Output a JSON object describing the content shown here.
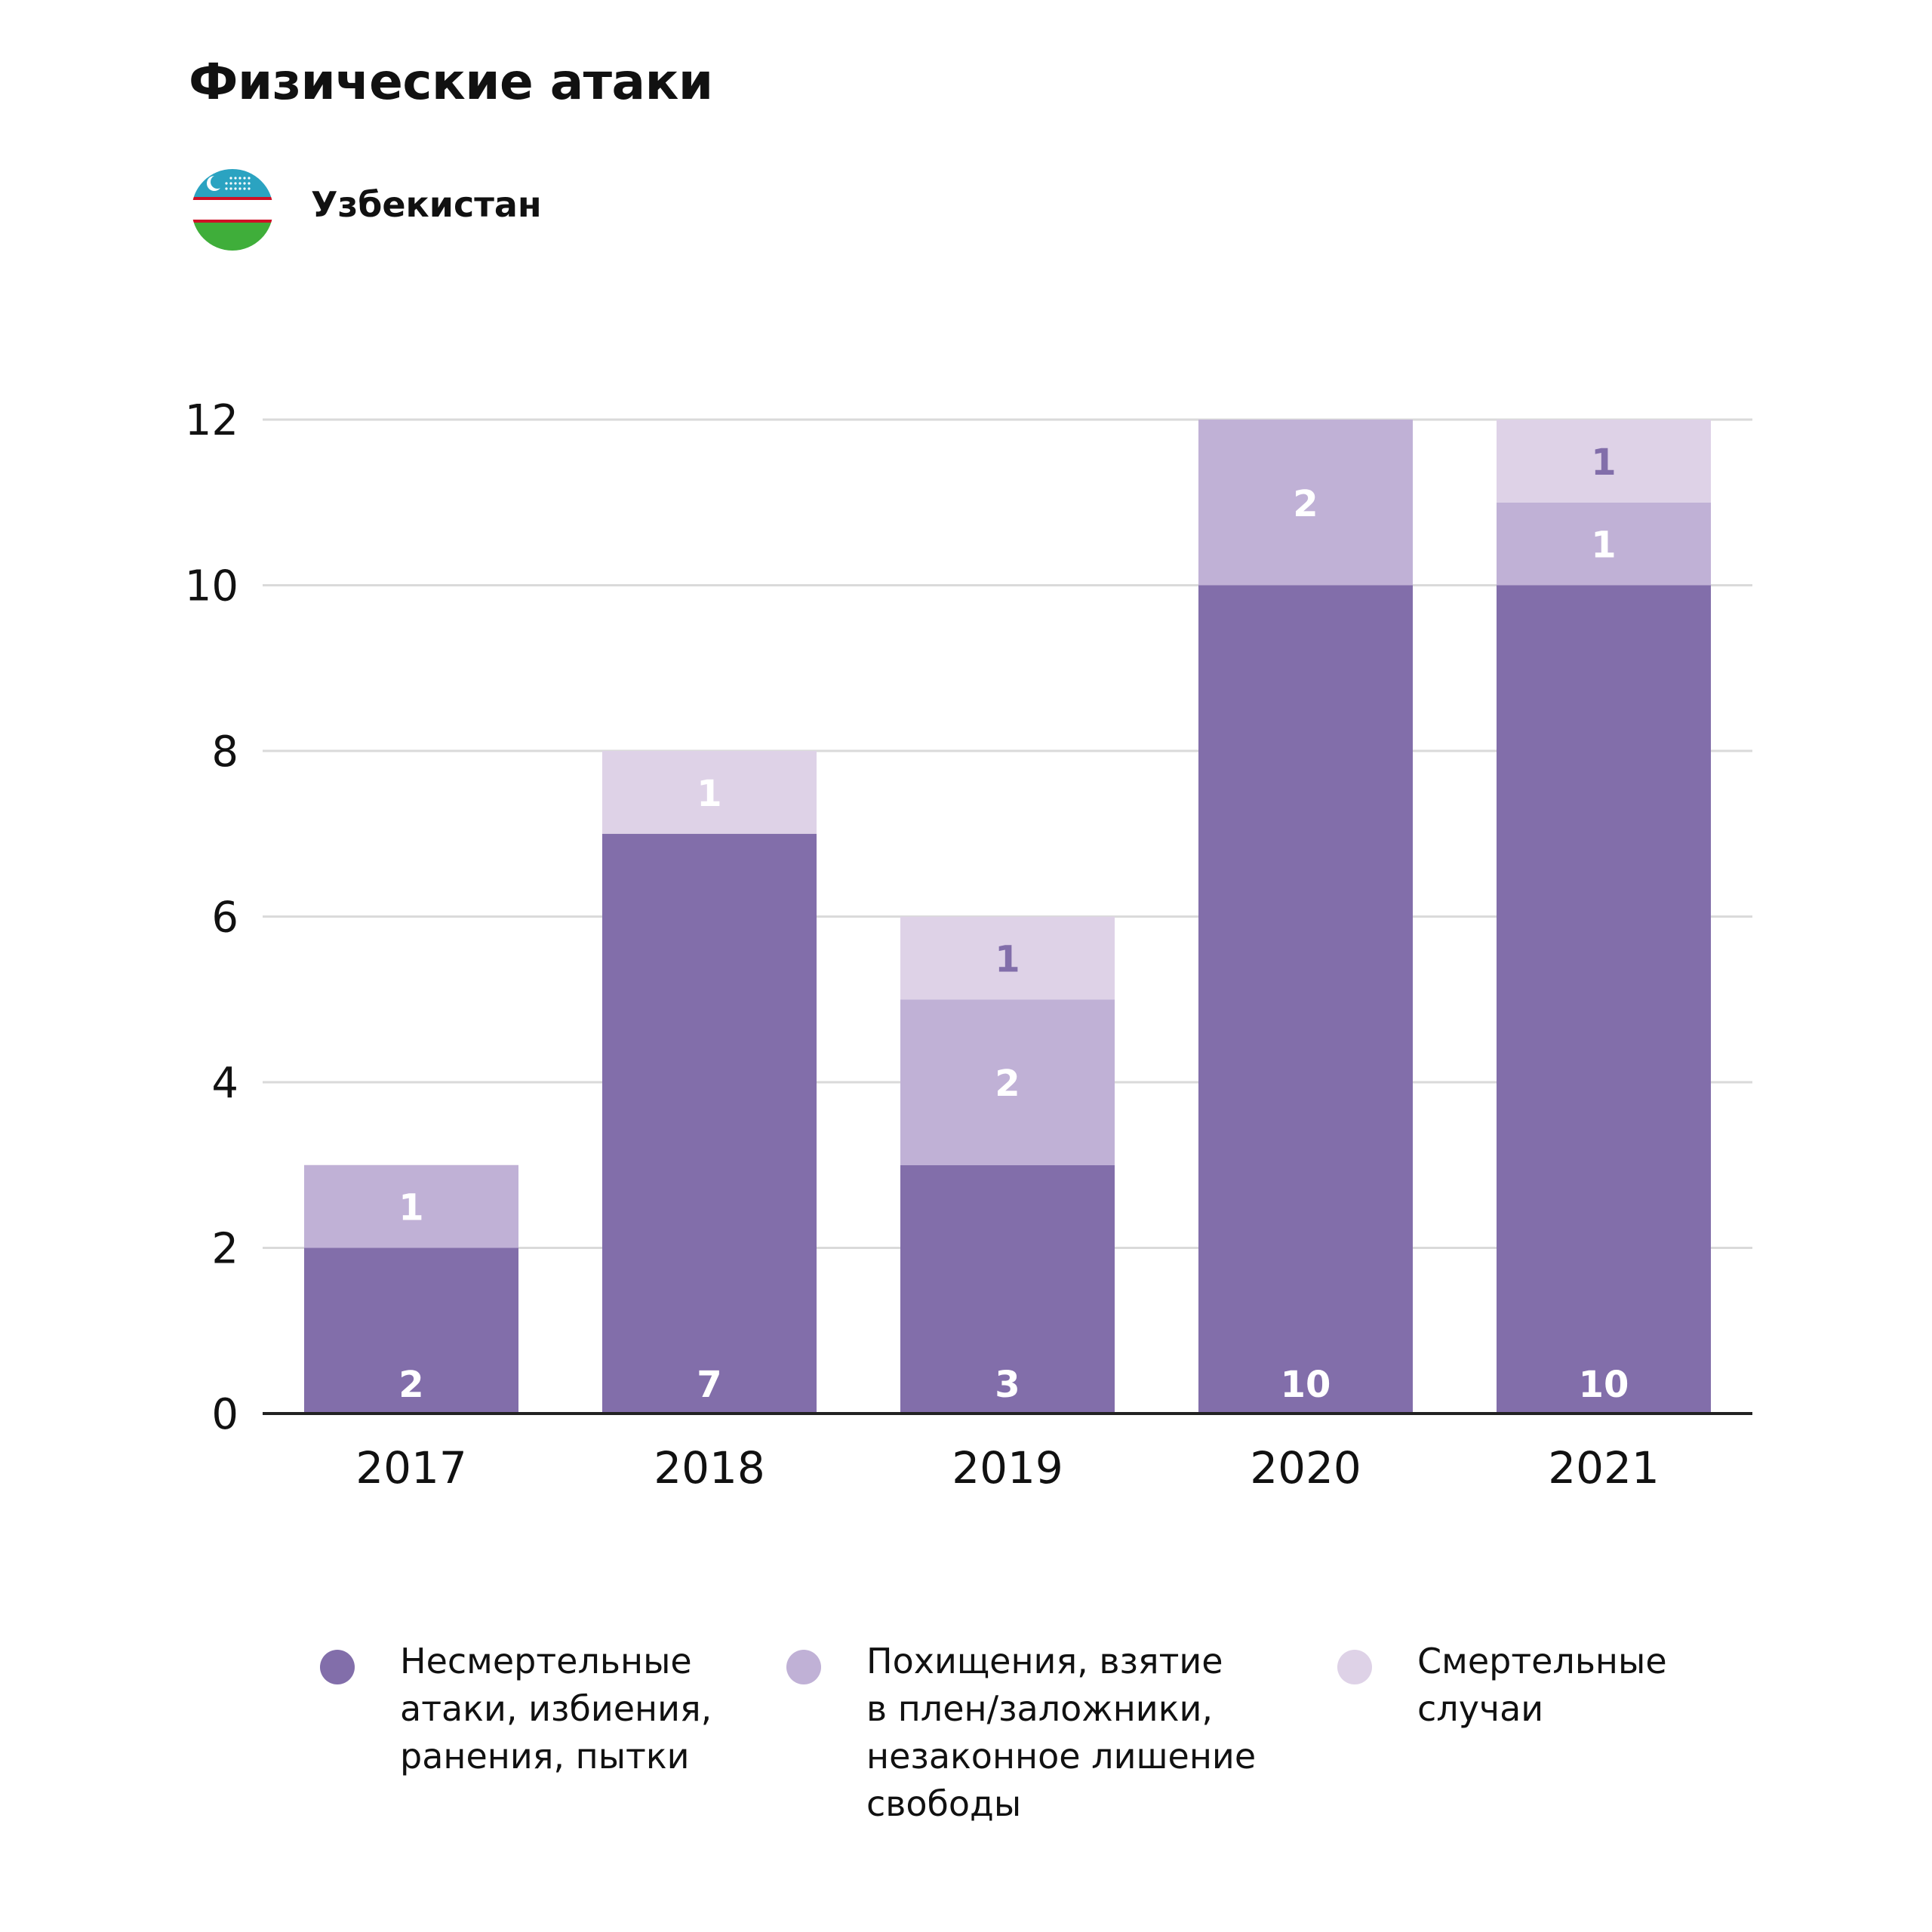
{
  "header": {
    "title": "Физические атаки",
    "country": "Узбекистан",
    "flag_icon": "uzbekistan-flag-icon"
  },
  "colors": {
    "nonfatal": "#826EAA",
    "kidnap": "#C0B1D6",
    "fatal": "#DED2E7",
    "grid": "#DADADA",
    "axis": "#222222",
    "label_white": "#FFFFFF",
    "label_purple": "#826EAA"
  },
  "chart_data": {
    "type": "bar",
    "stacked": true,
    "categories": [
      "2017",
      "2018",
      "2019",
      "2020",
      "2021"
    ],
    "series": [
      {
        "name": "Несмертельные атаки, избиения, ранения, пытки",
        "values": [
          2,
          7,
          3,
          10,
          10
        ]
      },
      {
        "name": "Похищения, взятие в плен/заложники, незаконное лишение свободы",
        "values": [
          1,
          0,
          2,
          2,
          1
        ]
      },
      {
        "name": "Смертельные случаи",
        "values": [
          0,
          1,
          1,
          0,
          1
        ]
      }
    ],
    "ylim": [
      0,
      12
    ],
    "yticks": [
      "0",
      "2",
      "4",
      "6",
      "8",
      "10",
      "12"
    ],
    "grid": true,
    "legend_position": "bottom"
  },
  "legend": [
    {
      "text": "Несмертельные\nатаки, избиения,\nранения, пытки"
    },
    {
      "text": "Похищения, взятие\nв плен/заложники,\nнезаконное лишение\nсвободы"
    },
    {
      "text": "Смертельные\nслучаи"
    }
  ]
}
